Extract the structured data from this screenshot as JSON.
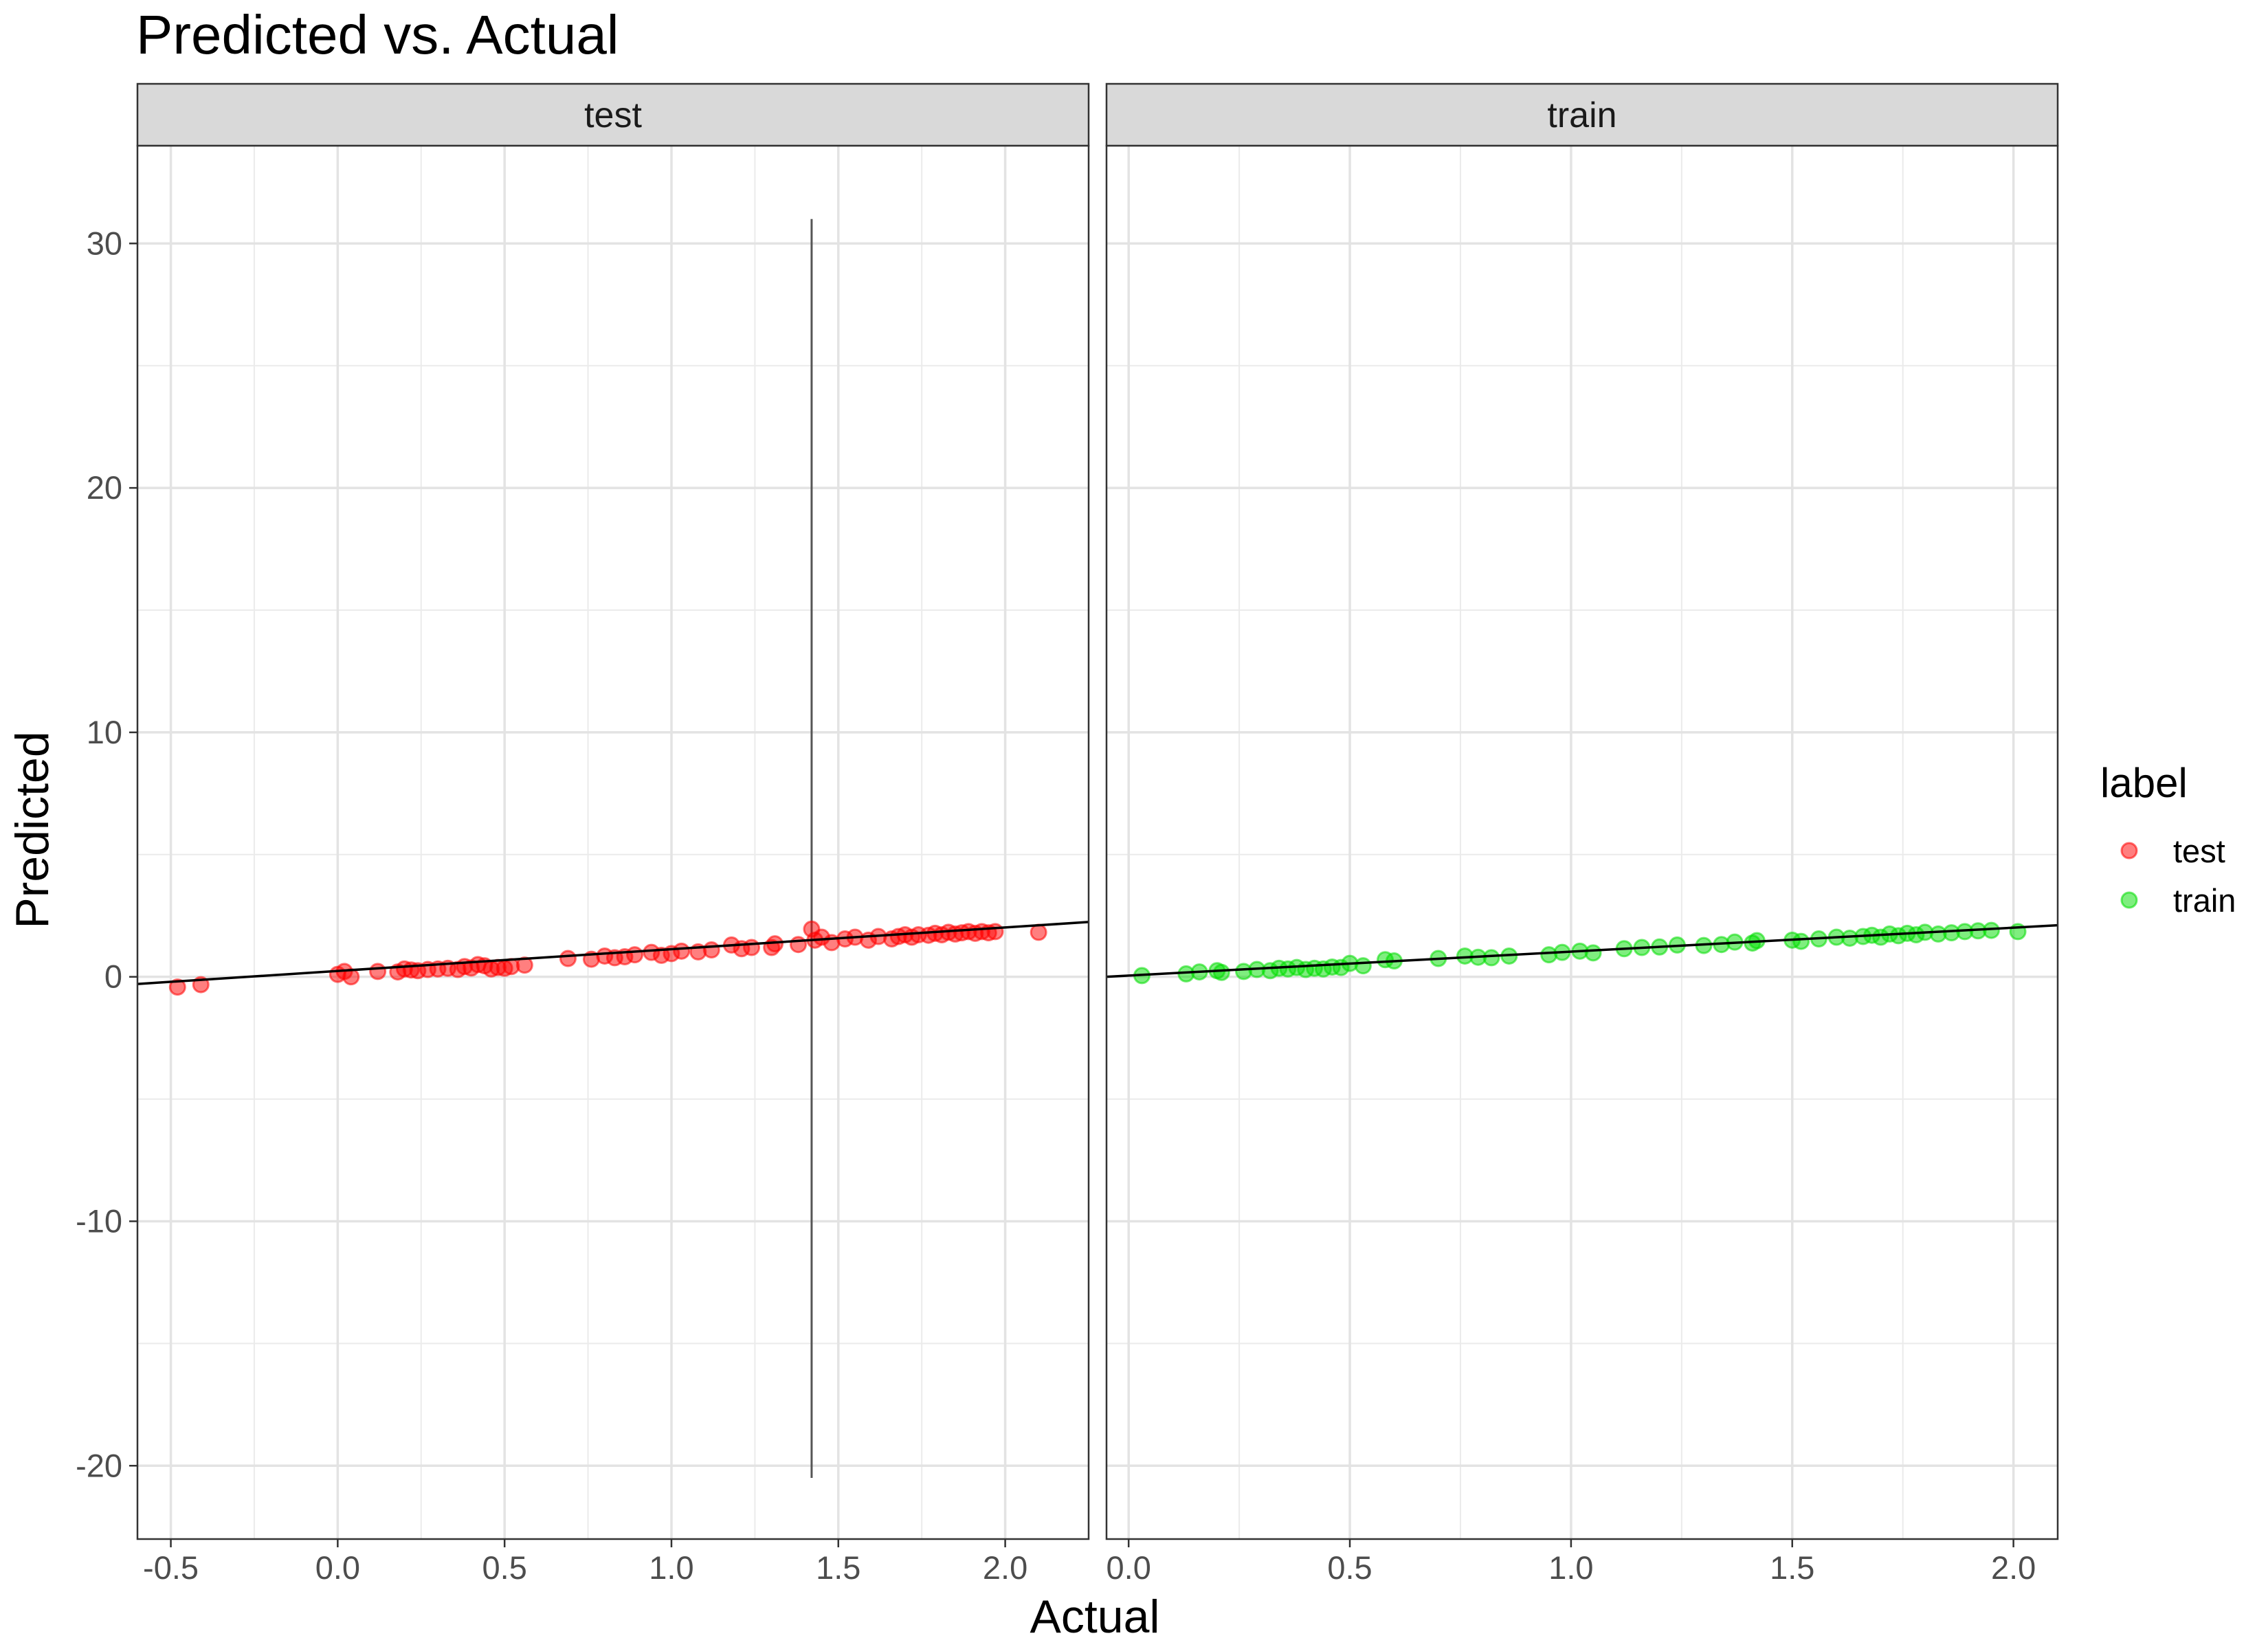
{
  "chart_data": {
    "type": "scatter",
    "title": "Predicted vs. Actual",
    "xlabel": "Actual",
    "ylabel": "Predicted",
    "ylim": [
      -23,
      34
    ],
    "y_ticks": [
      "30",
      "20",
      "10",
      "0",
      "-10",
      "-20"
    ],
    "y_tick_values": [
      30,
      20,
      10,
      0,
      -10,
      -20
    ],
    "grid": true,
    "legend": {
      "title": "label",
      "position": "right",
      "entries": [
        {
          "label": "test",
          "color": "#F8766D"
        },
        {
          "label": "train",
          "color": "#00BA38"
        }
      ]
    },
    "facets": [
      {
        "strip": "test",
        "xlim": [
          -0.6,
          2.25
        ],
        "x_ticks": [
          "-0.5",
          "0.0",
          "0.5",
          "1.0",
          "1.5",
          "2.0"
        ],
        "x_tick_values": [
          -0.5,
          0.0,
          0.5,
          1.0,
          1.5,
          2.0
        ],
        "point_color": "#ff0000",
        "fit_line": {
          "intercept": 0.24,
          "slope": 0.89
        },
        "error_bar": {
          "x": 1.42,
          "ymin": -20.5,
          "ymax": 31.0
        },
        "points": [
          [
            -0.48,
            -0.42
          ],
          [
            -0.41,
            -0.32
          ],
          [
            0.0,
            0.1
          ],
          [
            0.02,
            0.22
          ],
          [
            0.04,
            0.0
          ],
          [
            0.12,
            0.22
          ],
          [
            0.18,
            0.2
          ],
          [
            0.2,
            0.32
          ],
          [
            0.22,
            0.28
          ],
          [
            0.24,
            0.25
          ],
          [
            0.27,
            0.3
          ],
          [
            0.3,
            0.32
          ],
          [
            0.33,
            0.35
          ],
          [
            0.36,
            0.3
          ],
          [
            0.38,
            0.42
          ],
          [
            0.4,
            0.36
          ],
          [
            0.42,
            0.5
          ],
          [
            0.44,
            0.45
          ],
          [
            0.46,
            0.32
          ],
          [
            0.48,
            0.38
          ],
          [
            0.5,
            0.35
          ],
          [
            0.52,
            0.42
          ],
          [
            0.56,
            0.48
          ],
          [
            0.69,
            0.75
          ],
          [
            0.76,
            0.72
          ],
          [
            0.8,
            0.85
          ],
          [
            0.83,
            0.78
          ],
          [
            0.86,
            0.82
          ],
          [
            0.89,
            0.9
          ],
          [
            0.94,
            1.0
          ],
          [
            0.97,
            0.88
          ],
          [
            1.0,
            0.95
          ],
          [
            1.03,
            1.05
          ],
          [
            1.08,
            1.02
          ],
          [
            1.12,
            1.1
          ],
          [
            1.18,
            1.3
          ],
          [
            1.21,
            1.15
          ],
          [
            1.24,
            1.2
          ],
          [
            1.3,
            1.2
          ],
          [
            1.31,
            1.35
          ],
          [
            1.38,
            1.32
          ],
          [
            1.42,
            1.95
          ],
          [
            1.43,
            1.5
          ],
          [
            1.45,
            1.62
          ],
          [
            1.48,
            1.4
          ],
          [
            1.52,
            1.55
          ],
          [
            1.55,
            1.62
          ],
          [
            1.59,
            1.5
          ],
          [
            1.62,
            1.65
          ],
          [
            1.66,
            1.55
          ],
          [
            1.68,
            1.65
          ],
          [
            1.7,
            1.72
          ],
          [
            1.72,
            1.62
          ],
          [
            1.74,
            1.72
          ],
          [
            1.77,
            1.7
          ],
          [
            1.79,
            1.78
          ],
          [
            1.81,
            1.72
          ],
          [
            1.83,
            1.82
          ],
          [
            1.85,
            1.75
          ],
          [
            1.87,
            1.8
          ],
          [
            1.89,
            1.85
          ],
          [
            1.91,
            1.78
          ],
          [
            1.93,
            1.85
          ],
          [
            1.95,
            1.8
          ],
          [
            1.97,
            1.85
          ],
          [
            2.1,
            1.82
          ]
        ]
      },
      {
        "strip": "train",
        "xlim": [
          -0.05,
          2.1
        ],
        "x_ticks": [
          "0.0",
          "0.5",
          "1.0",
          "1.5",
          "2.0"
        ],
        "x_tick_values": [
          0.0,
          0.5,
          1.0,
          1.5,
          2.0
        ],
        "point_color": "#00dd00",
        "fit_line": {
          "intercept": 0.05,
          "slope": 0.98
        },
        "points": [
          [
            0.03,
            0.05
          ],
          [
            0.13,
            0.12
          ],
          [
            0.16,
            0.2
          ],
          [
            0.2,
            0.25
          ],
          [
            0.21,
            0.18
          ],
          [
            0.26,
            0.22
          ],
          [
            0.29,
            0.3
          ],
          [
            0.32,
            0.25
          ],
          [
            0.34,
            0.35
          ],
          [
            0.36,
            0.32
          ],
          [
            0.38,
            0.38
          ],
          [
            0.4,
            0.3
          ],
          [
            0.42,
            0.35
          ],
          [
            0.44,
            0.32
          ],
          [
            0.46,
            0.4
          ],
          [
            0.48,
            0.38
          ],
          [
            0.5,
            0.55
          ],
          [
            0.53,
            0.45
          ],
          [
            0.58,
            0.7
          ],
          [
            0.6,
            0.65
          ],
          [
            0.7,
            0.75
          ],
          [
            0.76,
            0.85
          ],
          [
            0.79,
            0.8
          ],
          [
            0.82,
            0.78
          ],
          [
            0.86,
            0.85
          ],
          [
            0.95,
            0.9
          ],
          [
            0.98,
            1.0
          ],
          [
            1.02,
            1.05
          ],
          [
            1.05,
            0.98
          ],
          [
            1.12,
            1.15
          ],
          [
            1.16,
            1.2
          ],
          [
            1.2,
            1.22
          ],
          [
            1.24,
            1.3
          ],
          [
            1.3,
            1.28
          ],
          [
            1.34,
            1.32
          ],
          [
            1.37,
            1.42
          ],
          [
            1.41,
            1.38
          ],
          [
            1.42,
            1.48
          ],
          [
            1.5,
            1.5
          ],
          [
            1.52,
            1.45
          ],
          [
            1.56,
            1.55
          ],
          [
            1.6,
            1.62
          ],
          [
            1.63,
            1.58
          ],
          [
            1.66,
            1.65
          ],
          [
            1.68,
            1.7
          ],
          [
            1.7,
            1.62
          ],
          [
            1.72,
            1.75
          ],
          [
            1.74,
            1.68
          ],
          [
            1.76,
            1.78
          ],
          [
            1.78,
            1.72
          ],
          [
            1.8,
            1.82
          ],
          [
            1.83,
            1.75
          ],
          [
            1.86,
            1.8
          ],
          [
            1.89,
            1.85
          ],
          [
            1.92,
            1.88
          ],
          [
            1.95,
            1.9
          ],
          [
            2.01,
            1.85
          ]
        ]
      }
    ]
  }
}
